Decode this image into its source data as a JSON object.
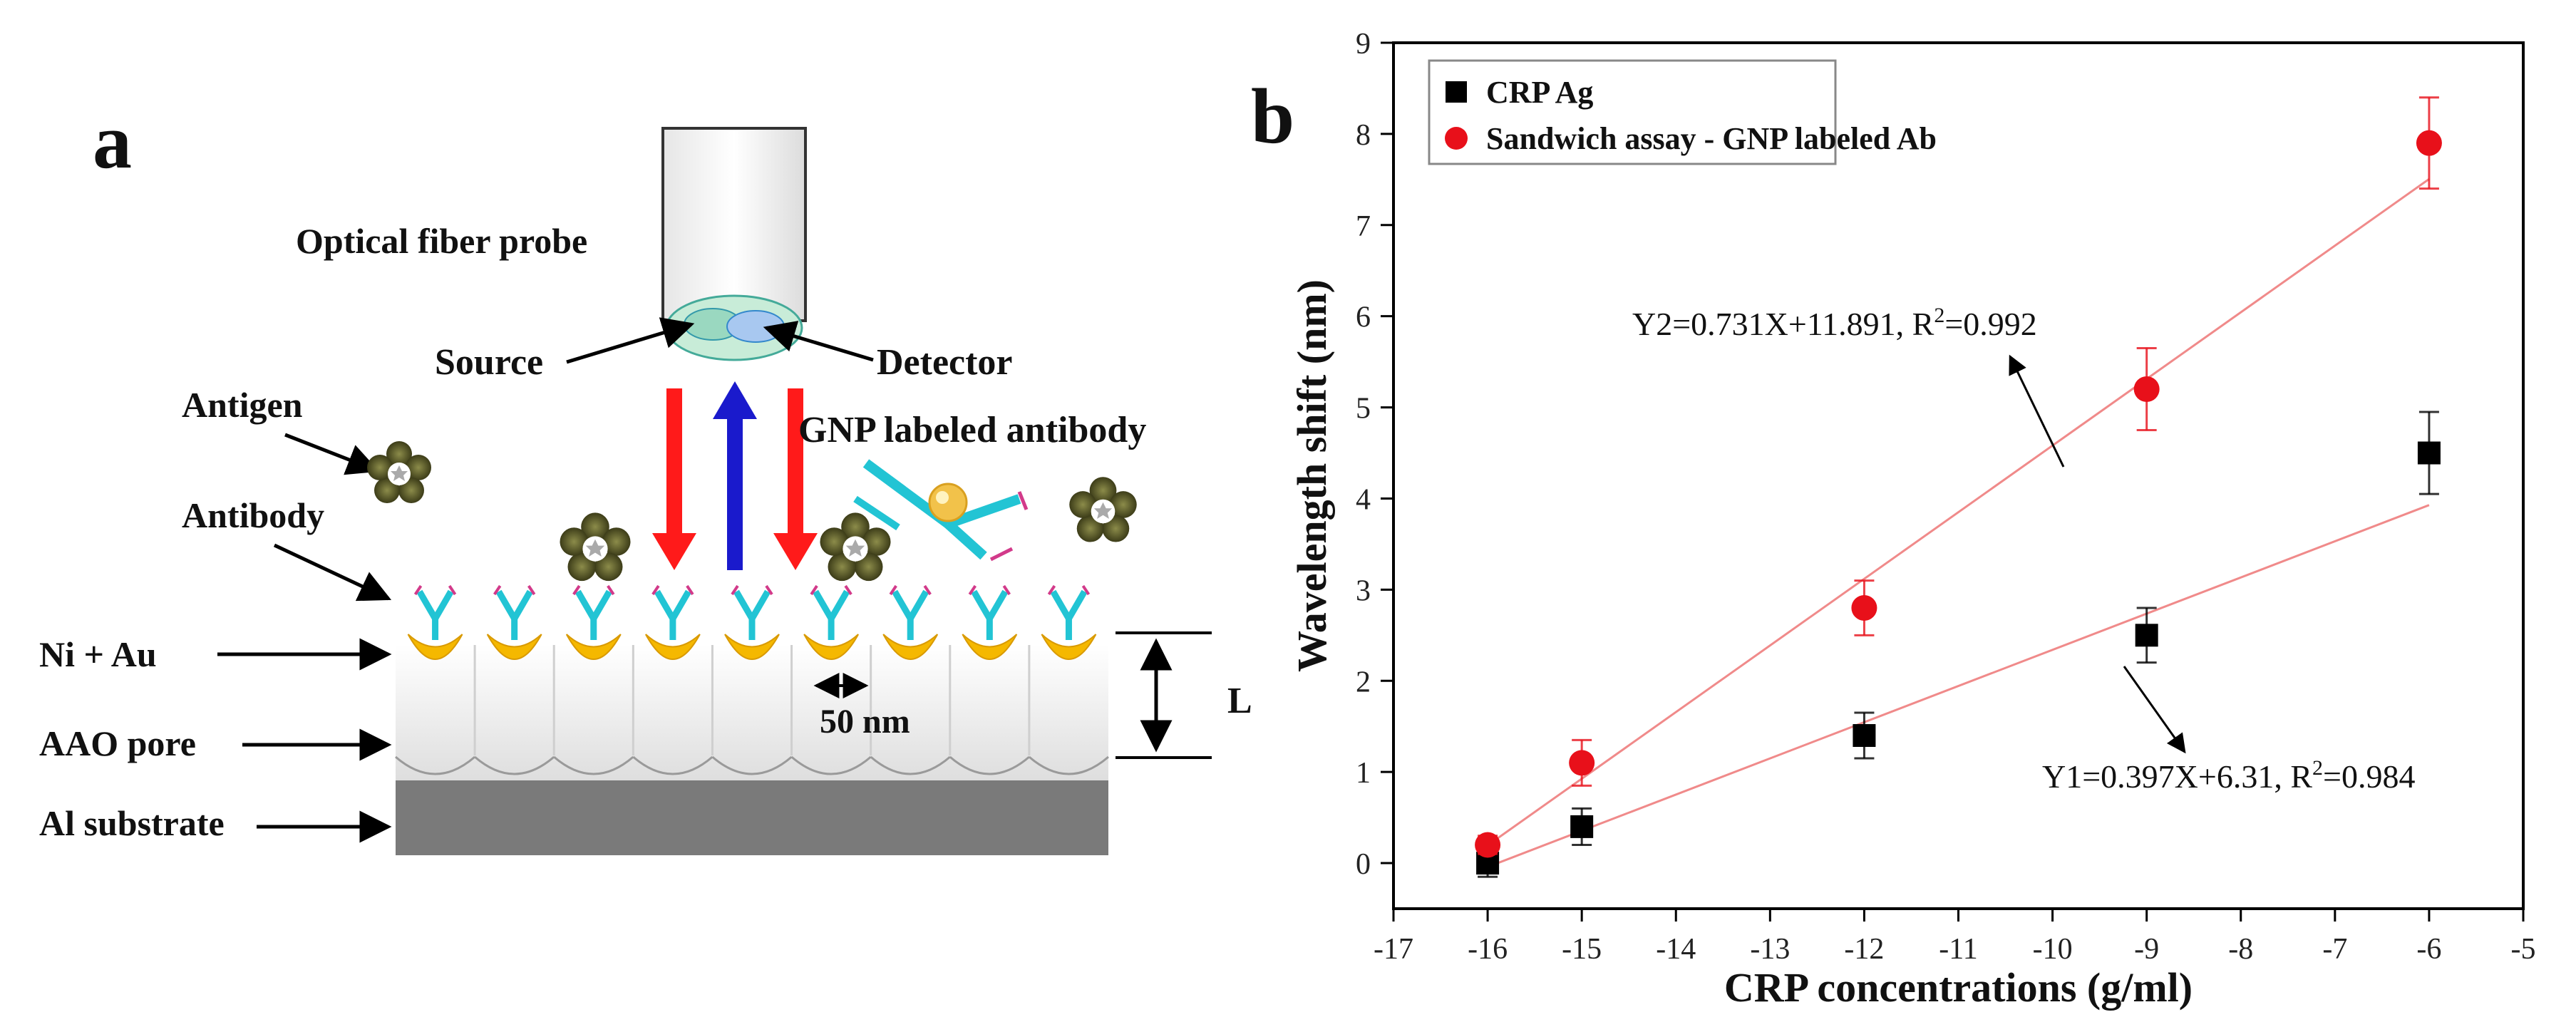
{
  "panel_a": {
    "panel_label": "a",
    "labels": {
      "probe": "Optical fiber probe",
      "source": "Source",
      "detector": "Detector",
      "antigen": "Antigen",
      "antibody": "Antibody",
      "gnp": "GNP labeled antibody",
      "niau": "Ni + Au",
      "aao": "AAO pore",
      "al": "Al substrate",
      "scale": "50 nm",
      "length": "L"
    },
    "colors": {
      "down_arrow": "#ff1a1a",
      "up_arrow": "#1a1acc",
      "gold": "#f5b800",
      "antibody": "#22c4d4",
      "substrate": "#7a7a7a",
      "antigen": "#5a5a2a"
    }
  },
  "panel_b": {
    "panel_label": "b",
    "chart_data": {
      "type": "scatter",
      "xlabel": "CRP concentrations (g/ml)",
      "ylabel": "Wavelength shift (nm)",
      "xlim": [
        -17,
        -5
      ],
      "ylim": [
        -0.5,
        9
      ],
      "x_ticks": [
        -17,
        -16,
        -15,
        -14,
        -13,
        -12,
        -11,
        -10,
        -9,
        -8,
        -7,
        -6,
        -5
      ],
      "y_ticks": [
        0,
        1,
        2,
        3,
        4,
        5,
        6,
        7,
        8,
        9
      ],
      "legend_position": "top-left",
      "grid": false,
      "series": [
        {
          "name": "CRP Ag",
          "marker": "square",
          "color": "#000000",
          "x": [
            -16,
            -15,
            -12,
            -9,
            -6
          ],
          "y": [
            0.0,
            0.4,
            1.4,
            2.5,
            4.5
          ],
          "err": [
            0.15,
            0.2,
            0.25,
            0.3,
            0.45
          ],
          "fit": {
            "slope": 0.397,
            "intercept": 6.31,
            "x_range": [
              -16,
              -6
            ]
          }
        },
        {
          "name": "Sandwich assay - GNP labeled Ab",
          "marker": "circle",
          "color": "#e8101a",
          "x": [
            -16,
            -15,
            -12,
            -9,
            -6
          ],
          "y": [
            0.2,
            1.1,
            2.8,
            5.2,
            7.9
          ],
          "err": [
            0.1,
            0.25,
            0.3,
            0.45,
            0.5
          ],
          "fit": {
            "slope": 0.731,
            "intercept": 11.891,
            "x_range": [
              -16,
              -6
            ]
          }
        }
      ],
      "annotations": {
        "y2_main": "Y2=0.731X+11.891, R",
        "y2_sup": "2",
        "y2_tail": "=0.992",
        "y1_main": "Y1=0.397X+6.31, R",
        "y1_sup": "2",
        "y1_tail": "=0.984"
      }
    }
  }
}
